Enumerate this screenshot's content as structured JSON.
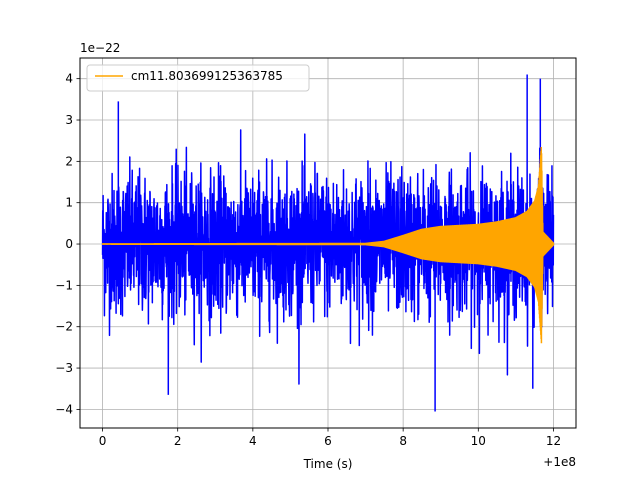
{
  "chart_data": {
    "type": "line",
    "xlabel": "Time (s)",
    "ylabel": "",
    "x_offset_label": "+1e8",
    "y_scale_label": "1e−22",
    "xlim": [
      -0.6,
      12.6
    ],
    "ylim": [
      -4.45,
      4.5
    ],
    "x_ticks": [
      0,
      2,
      4,
      6,
      8,
      10,
      12
    ],
    "x_tick_labels": [
      "0",
      "2",
      "4",
      "6",
      "8",
      "10",
      "12"
    ],
    "y_ticks": [
      -4,
      -3,
      -2,
      -1,
      0,
      1,
      2,
      3,
      4
    ],
    "y_tick_labels": [
      "−4",
      "−3",
      "−2",
      "−1",
      "0",
      "1",
      "2",
      "3",
      "4"
    ],
    "grid": true,
    "legend_position": "top-left",
    "series": [
      {
        "color": "#0000ff",
        "description": "noisy strain data",
        "x_range": [
          0,
          12
        ],
        "band_typical": 1.6,
        "envelope_max": 3.5,
        "peaks": [
          {
            "x": 0.42,
            "y": 3.45
          },
          {
            "x": 1.75,
            "y": -3.65
          },
          {
            "x": 8.85,
            "y": -4.05
          },
          {
            "x": 11.3,
            "y": 4.1
          },
          {
            "x": 11.65,
            "y": 4.0
          },
          {
            "x": 11.45,
            "y": -3.5
          }
        ]
      },
      {
        "name": "cm11.803699125363785",
        "color": "#ffa500",
        "description": "chirp template",
        "x_range": [
          0,
          12
        ],
        "amplitude_envelope": [
          {
            "x": 0,
            "a": 0.02
          },
          {
            "x": 7.0,
            "a": 0.03
          },
          {
            "x": 7.5,
            "a": 0.08
          },
          {
            "x": 8.0,
            "a": 0.22
          },
          {
            "x": 8.5,
            "a": 0.37
          },
          {
            "x": 9.0,
            "a": 0.44
          },
          {
            "x": 10.0,
            "a": 0.49
          },
          {
            "x": 10.5,
            "a": 0.55
          },
          {
            "x": 11.0,
            "a": 0.65
          },
          {
            "x": 11.3,
            "a": 0.8
          },
          {
            "x": 11.5,
            "a": 1.05
          },
          {
            "x": 11.6,
            "a": 1.4
          },
          {
            "x": 11.68,
            "a": 2.4
          },
          {
            "x": 11.72,
            "a": 0.3
          },
          {
            "x": 12.0,
            "a": 0.03
          }
        ]
      }
    ]
  }
}
